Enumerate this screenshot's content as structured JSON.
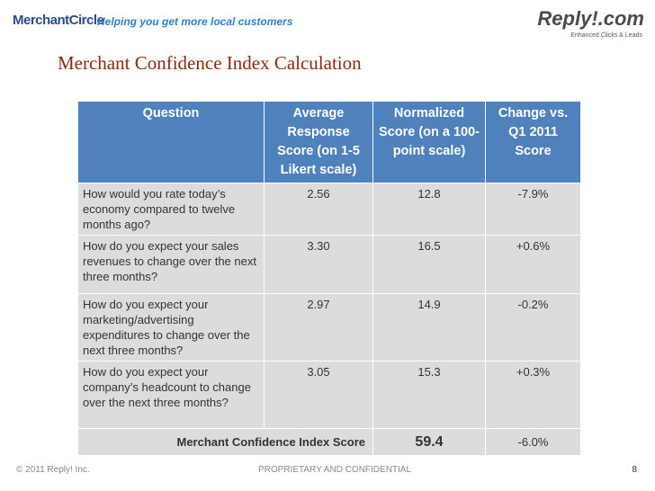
{
  "header": {
    "left_logo": "MerchantCircle",
    "tagline": "Helping you get more local customers",
    "right_logo": "Reply!.com",
    "right_tagline": "Enhanced Clicks & Leads"
  },
  "title": "Merchant Confidence Index Calculation",
  "table": {
    "columns": [
      "Question",
      "Average Response Score (on 1-5 Likert scale)",
      "Normalized Score (on a 100-point scale)",
      "Change vs. Q1 2011 Score"
    ],
    "rows": [
      [
        "How would you rate today’s economy compared to twelve months ago?",
        "2.56",
        "12.8",
        "-7.9%"
      ],
      [
        "How do you expect your sales revenues to change over the next three months?",
        "3.30",
        "16.5",
        "+0.6%"
      ],
      [
        "How do you expect your marketing/advertising expenditures to change over the next three months?",
        "2.97",
        "14.9",
        "-0.2%"
      ],
      [
        "How do you expect your company’s headcount to change over the next three months?",
        "3.05",
        "15.3",
        "+0.3%"
      ]
    ],
    "total": {
      "label": "Merchant Confidence Index Score",
      "score": "59.4",
      "change": "-6.0%"
    }
  },
  "footer": {
    "copyright": "© 2011 Reply! Inc.",
    "confidential": "PROPRIETARY AND CONFIDENTIAL",
    "page": "8"
  }
}
